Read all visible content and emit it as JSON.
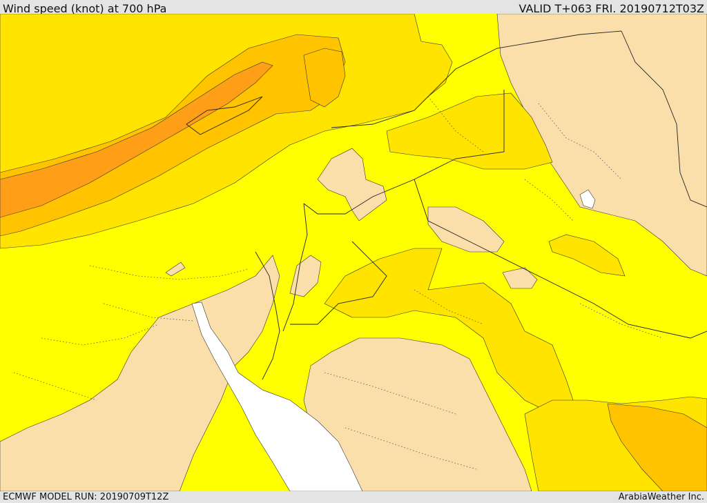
{
  "header": {
    "title": "Wind speed (knot) at 700 hPa",
    "valid": "VALID T+063 FRI. 20190712T03Z"
  },
  "footer": {
    "model_run": "ECMWF MODEL RUN: 20190709T12Z",
    "brand": "ArabiaWeather Inc."
  },
  "colors": {
    "level_lowest": "#fbdfab",
    "level_low": "#ffff00",
    "level_mid": "#ffe400",
    "level_high": "#ffc300",
    "level_highest": "#ff9f18",
    "sea_no_data": "#ffffff"
  }
}
